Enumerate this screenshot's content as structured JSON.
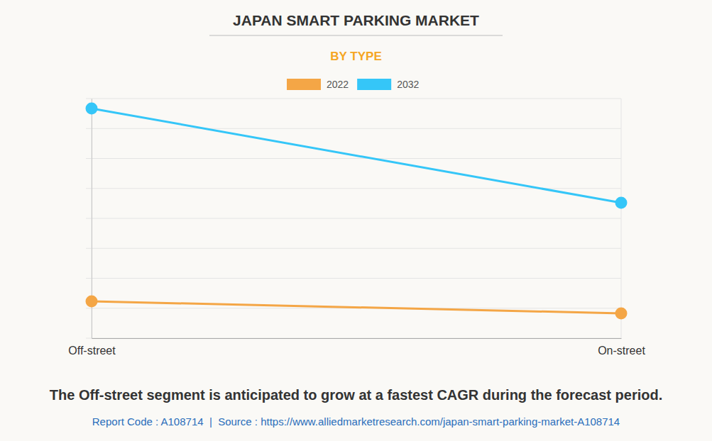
{
  "chart_data": {
    "type": "line",
    "title": "JAPAN SMART PARKING MARKET",
    "subtitle": "BY TYPE",
    "categories": [
      "Off-street",
      "On-street"
    ],
    "series": [
      {
        "name": "2022",
        "color": "#f4a646",
        "values": [
          1.23,
          0.83
        ]
      },
      {
        "name": "2032",
        "color": "#35c6f8",
        "values": [
          7.67,
          4.52
        ]
      }
    ],
    "ylim": [
      0,
      8
    ],
    "yticks": [
      0,
      1,
      2,
      3,
      4,
      5,
      6,
      7,
      8
    ],
    "grid": true,
    "tick_labels": "x",
    "legend": "top",
    "marker": "circle",
    "note": "The Off-street segment is anticipated to grow at a fastest CAGR during the forecast period.",
    "source": "Report Code : A108714  |  Source : https://www.alliedmarketresearch.com/japan-smart-parking-market-A108714"
  }
}
